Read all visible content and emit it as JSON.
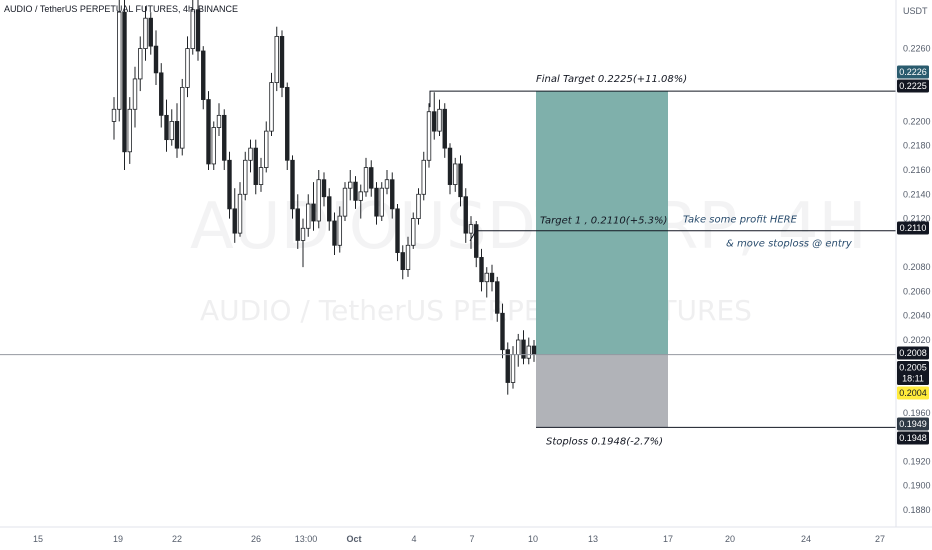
{
  "header": {
    "title": "AUDIO / TetherUS PERPETUAL FUTURES, 4h, BINANCE"
  },
  "watermark": {
    "symbol": "AUDIOUSDTPERP, 4H",
    "name": "AUDIO / TetherUS PERPETUAL FUTURES"
  },
  "colors": {
    "reward_zone": "#7fb0ab",
    "risk_zone": "#b1b3b8",
    "candle": "#1f2226",
    "price_line": "#9598a1",
    "last_price_bg": "#131722",
    "countdown_bg": "#131722",
    "extra_badge_bg": "#ffeb3b",
    "target_badge_bg": "#2a5b6e"
  },
  "chart_data": {
    "type": "candlestick",
    "y_axis": {
      "unit": "USDT",
      "range": [
        0.1866,
        0.23
      ],
      "ticks": [
        "0.2260",
        "0.2200",
        "0.2180",
        "0.2160",
        "0.2140",
        "0.2120",
        "0.2080",
        "0.2060",
        "0.2040",
        "0.2020",
        "0.1960",
        "0.1920",
        "0.1900",
        "0.1880"
      ]
    },
    "x_axis": {
      "labels": [
        "15",
        "19",
        "22",
        "26",
        "13:00",
        "Oct",
        "4",
        "7",
        "10",
        "13",
        "17",
        "20",
        "24",
        "27"
      ]
    },
    "candles_approx": [
      [
        0.22,
        0.222,
        0.2185,
        0.221
      ],
      [
        0.221,
        0.23,
        0.22,
        0.229
      ],
      [
        0.229,
        0.23,
        0.216,
        0.2175
      ],
      [
        0.2175,
        0.222,
        0.2165,
        0.221
      ],
      [
        0.221,
        0.2245,
        0.2195,
        0.2235
      ],
      [
        0.2235,
        0.227,
        0.2225,
        0.226
      ],
      [
        0.226,
        0.2295,
        0.225,
        0.2285
      ],
      [
        0.2285,
        0.229,
        0.2255,
        0.2262
      ],
      [
        0.2262,
        0.2275,
        0.223,
        0.224
      ],
      [
        0.224,
        0.2248,
        0.2195,
        0.2205
      ],
      [
        0.2205,
        0.2218,
        0.2175,
        0.2185
      ],
      [
        0.2185,
        0.221,
        0.218,
        0.22
      ],
      [
        0.22,
        0.2215,
        0.217,
        0.2178
      ],
      [
        0.2178,
        0.2235,
        0.2172,
        0.2228
      ],
      [
        0.2228,
        0.227,
        0.222,
        0.226
      ],
      [
        0.226,
        0.23,
        0.2255,
        0.2292
      ],
      [
        0.2292,
        0.23,
        0.225,
        0.2258
      ],
      [
        0.2258,
        0.2262,
        0.221,
        0.2218
      ],
      [
        0.2218,
        0.2225,
        0.216,
        0.2165
      ],
      [
        0.2165,
        0.22,
        0.216,
        0.2195
      ],
      [
        0.2195,
        0.2215,
        0.2188,
        0.2205
      ],
      [
        0.2205,
        0.221,
        0.216,
        0.2168
      ],
      [
        0.2168,
        0.2175,
        0.212,
        0.2128
      ],
      [
        0.2128,
        0.2145,
        0.21,
        0.2108
      ],
      [
        0.2108,
        0.215,
        0.2105,
        0.214
      ],
      [
        0.214,
        0.2175,
        0.2135,
        0.2168
      ],
      [
        0.2168,
        0.2185,
        0.2158,
        0.2178
      ],
      [
        0.2178,
        0.2185,
        0.214,
        0.2148
      ],
      [
        0.2148,
        0.217,
        0.2142,
        0.2162
      ],
      [
        0.2162,
        0.22,
        0.2158,
        0.2192
      ],
      [
        0.2192,
        0.224,
        0.2188,
        0.2232
      ],
      [
        0.2232,
        0.2278,
        0.2225,
        0.227
      ],
      [
        0.227,
        0.2275,
        0.222,
        0.2228
      ],
      [
        0.2228,
        0.2232,
        0.216,
        0.2168
      ],
      [
        0.2168,
        0.2172,
        0.212,
        0.2128
      ],
      [
        0.2128,
        0.214,
        0.2095,
        0.2102
      ],
      [
        0.2102,
        0.212,
        0.208,
        0.2112
      ],
      [
        0.2112,
        0.214,
        0.2105,
        0.2132
      ],
      [
        0.2132,
        0.215,
        0.211,
        0.2118
      ],
      [
        0.2118,
        0.216,
        0.2112,
        0.2152
      ],
      [
        0.2152,
        0.2158,
        0.213,
        0.2138
      ],
      [
        0.2138,
        0.2145,
        0.211,
        0.2118
      ],
      [
        0.2118,
        0.2125,
        0.209,
        0.2098
      ],
      [
        0.2098,
        0.213,
        0.2092,
        0.2122
      ],
      [
        0.2122,
        0.215,
        0.2118,
        0.2145
      ],
      [
        0.2145,
        0.216,
        0.2135,
        0.215
      ],
      [
        0.215,
        0.2155,
        0.2128,
        0.2135
      ],
      [
        0.2135,
        0.2148,
        0.212,
        0.2142
      ],
      [
        0.2142,
        0.217,
        0.2138,
        0.2162
      ],
      [
        0.2162,
        0.2168,
        0.2138,
        0.2145
      ],
      [
        0.2145,
        0.215,
        0.2115,
        0.2122
      ],
      [
        0.2122,
        0.215,
        0.2118,
        0.2145
      ],
      [
        0.2145,
        0.216,
        0.214,
        0.2152
      ],
      [
        0.2152,
        0.2158,
        0.212,
        0.2128
      ],
      [
        0.2128,
        0.2132,
        0.2085,
        0.2092
      ],
      [
        0.2092,
        0.2098,
        0.207,
        0.2078
      ],
      [
        0.2078,
        0.2105,
        0.2072,
        0.2098
      ],
      [
        0.2098,
        0.2125,
        0.2095,
        0.212
      ],
      [
        0.212,
        0.2145,
        0.2115,
        0.214
      ],
      [
        0.214,
        0.2175,
        0.2135,
        0.2168
      ],
      [
        0.2168,
        0.2215,
        0.2162,
        0.2208
      ],
      [
        0.2208,
        0.2224,
        0.2185,
        0.2192
      ],
      [
        0.2192,
        0.2218,
        0.2188,
        0.221
      ],
      [
        0.221,
        0.2215,
        0.217,
        0.2178
      ],
      [
        0.2178,
        0.2182,
        0.214,
        0.2148
      ],
      [
        0.2148,
        0.217,
        0.2142,
        0.2165
      ],
      [
        0.2165,
        0.2172,
        0.213,
        0.2138
      ],
      [
        0.2138,
        0.2145,
        0.21,
        0.2108
      ],
      [
        0.2108,
        0.2122,
        0.2095,
        0.2115
      ],
      [
        0.2115,
        0.2118,
        0.208,
        0.2088
      ],
      [
        0.2088,
        0.2095,
        0.206,
        0.2068
      ],
      [
        0.2068,
        0.208,
        0.2055,
        0.2075
      ],
      [
        0.2075,
        0.2082,
        0.206,
        0.2068
      ],
      [
        0.2068,
        0.2072,
        0.2035,
        0.2042
      ],
      [
        0.2042,
        0.205,
        0.2005,
        0.2012
      ],
      [
        0.2012,
        0.2018,
        0.1975,
        0.1985
      ],
      [
        0.1985,
        0.2015,
        0.198,
        0.2008
      ],
      [
        0.2008,
        0.2025,
        0.1998,
        0.202
      ],
      [
        0.202,
        0.2028,
        0.2,
        0.2005
      ],
      [
        0.2005,
        0.2022,
        0.2,
        0.2015
      ],
      [
        0.2015,
        0.202,
        0.2002,
        0.2008
      ]
    ],
    "lines": {
      "final_target": 0.2225,
      "target_1": 0.211,
      "entry": 0.2008,
      "stoploss": 0.1948
    },
    "annotations": {
      "final_target": "Final Target 0.2225(+11.08%)",
      "target_1": "Target 1 , 0.2110(+5.3%)",
      "stoploss": "Stoploss 0.1948(-2.7%)",
      "note_1": "Take some profit HERE",
      "note_2": "& move stoploss @ entry"
    },
    "price_badges": {
      "top_target": "0.2226",
      "final_target": "0.2225",
      "target_1": "0.2110",
      "entry": "0.2008",
      "last": "0.2005",
      "countdown": "18:11",
      "extra": "0.2004",
      "stop_1": "0.1949",
      "stop_2": "0.1948"
    }
  }
}
